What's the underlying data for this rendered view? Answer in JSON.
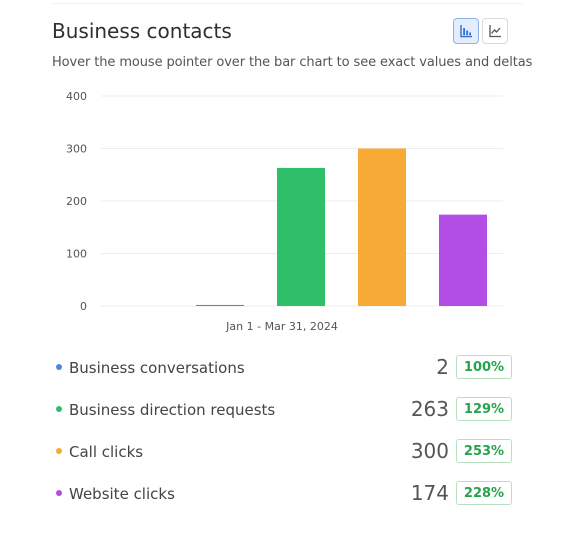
{
  "card": {
    "title": "Business contacts",
    "subtitle": "Hover the mouse pointer over the bar chart to see exact values and deltas"
  },
  "view_toggle": [
    {
      "name": "bar-chart-icon",
      "active": true
    },
    {
      "name": "line-chart-icon",
      "active": false
    }
  ],
  "chart_data": {
    "type": "bar",
    "categories": [
      "Business conversations",
      "Business direction requests",
      "Call clicks",
      "Website clicks"
    ],
    "values": [
      2,
      263,
      300,
      174
    ],
    "colors": [
      "#4a86e8",
      "#2fbf6b",
      "#f7aa36",
      "#b24de6"
    ],
    "yticks": [
      "400",
      "300",
      "200",
      "100",
      "0"
    ],
    "ylim": [
      0,
      400
    ],
    "xlabel": "Jan 1 - Mar 31, 2024",
    "grid": true
  },
  "legend": [
    {
      "label": "Business conversations",
      "value": "2",
      "delta": "100%",
      "color": "#4a86e8"
    },
    {
      "label": "Business direction requests",
      "value": "263",
      "delta": "129%",
      "color": "#2fbf6b"
    },
    {
      "label": "Call clicks",
      "value": "300",
      "delta": "253%",
      "color": "#f7aa36"
    },
    {
      "label": "Website clicks",
      "value": "174",
      "delta": "228%",
      "color": "#b24de6"
    }
  ]
}
